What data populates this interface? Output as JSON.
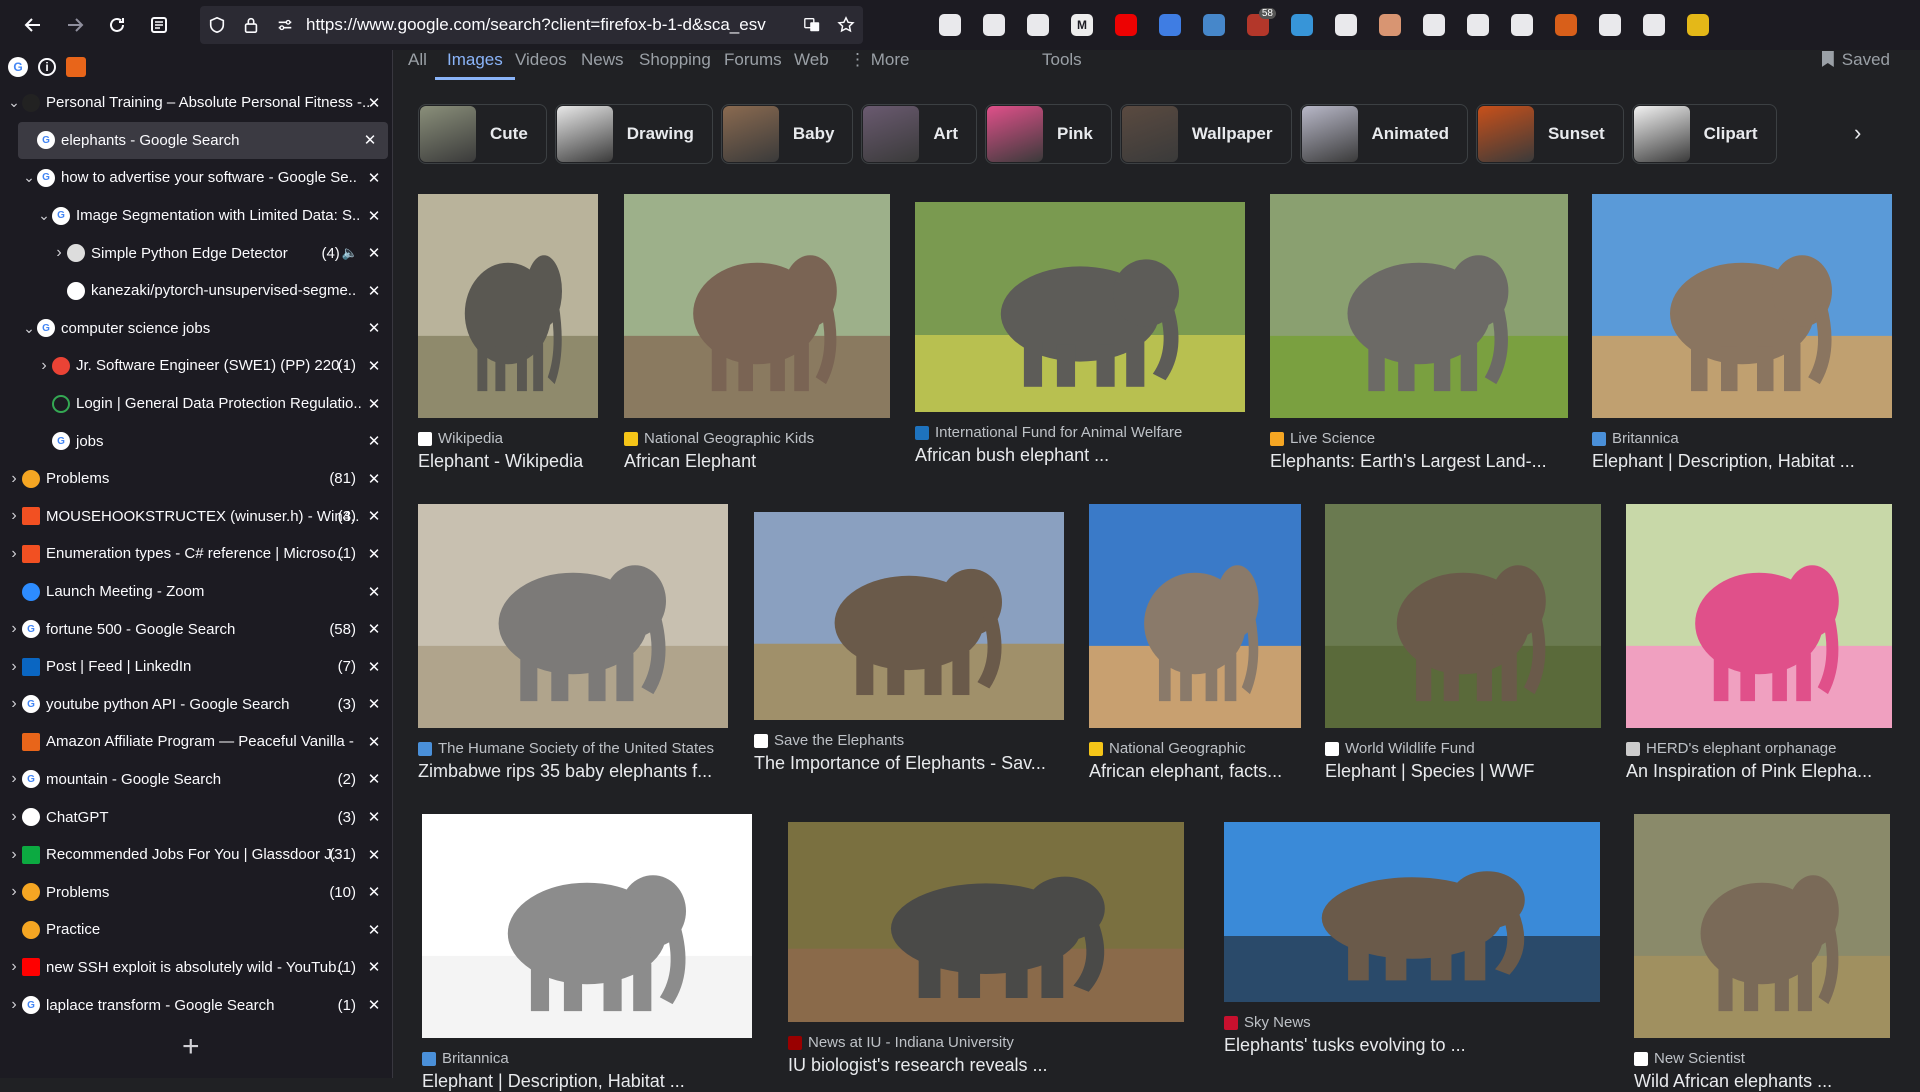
{
  "toolbar": {
    "url": "https://www.google.com/search?client=firefox-b-1-d&sca_esv",
    "extensions": [
      {
        "icon": "pocket-icon",
        "color": "#fbfbfe",
        "label": ""
      },
      {
        "icon": "screenshot-icon",
        "color": "#fbfbfe",
        "label": ""
      },
      {
        "icon": "download-icon",
        "color": "#fbfbfe",
        "label": ""
      },
      {
        "icon": "m-extension-icon",
        "color": "#ffffff",
        "label": "M"
      },
      {
        "icon": "youtube-extension-icon",
        "color": "#ff0000",
        "label": ""
      },
      {
        "icon": "translate-extension-icon",
        "color": "#4285f4",
        "label": ""
      },
      {
        "icon": "search-extension-icon",
        "color": "#4a90d9",
        "label": ""
      },
      {
        "icon": "ublock-icon",
        "color": "#c0392b",
        "label": "",
        "badge": "58"
      },
      {
        "icon": "compass-extension-icon",
        "color": "#3aa0e8",
        "label": ""
      },
      {
        "icon": "k-extension-icon",
        "color": "#fbfbfe",
        "label": ""
      },
      {
        "icon": "eyes-extension-icon",
        "color": "#e8a07a",
        "label": ""
      },
      {
        "icon": "puzzle-icon",
        "color": "#fbfbfe",
        "label": ""
      },
      {
        "icon": "music-icon",
        "color": "#fbfbfe",
        "label": ""
      },
      {
        "icon": "glasses-extension-icon",
        "color": "#fbfbfe",
        "label": ""
      },
      {
        "icon": "orange-extension-icon",
        "color": "#e8651a",
        "label": ""
      },
      {
        "icon": "stripes-extension-icon",
        "color": "#fbfbfe",
        "label": ""
      },
      {
        "icon": "gear-extension-icon",
        "color": "#fbfbfe",
        "label": ""
      },
      {
        "icon": "menu-extension-icon",
        "color": "#f5c518",
        "label": ""
      }
    ]
  },
  "sidebar": {
    "tabs": [
      {
        "indent": 0,
        "chev": "v",
        "fav": "fitness-favicon",
        "favColor": "#222",
        "title": "Personal Training – Absolute Personal Fitness -..",
        "count": "",
        "active": false
      },
      {
        "indent": 1,
        "chev": "",
        "fav": "google-favicon",
        "favColor": "#fff",
        "title": "elephants - Google Search",
        "count": "",
        "active": true
      },
      {
        "indent": 1,
        "chev": "v",
        "fav": "google-favicon",
        "favColor": "#fff",
        "title": "how to advertise your software - Google Se..",
        "count": "",
        "active": false
      },
      {
        "indent": 2,
        "chev": "v",
        "fav": "google-favicon",
        "favColor": "#fff",
        "title": "Image Segmentation with Limited Data: S..",
        "count": "",
        "active": false
      },
      {
        "indent": 3,
        "chev": ">",
        "fav": "edge-detector-favicon",
        "favColor": "#ddd",
        "title": "Simple Python Edge Detector",
        "count": "(4)",
        "active": false,
        "audio": true
      },
      {
        "indent": 3,
        "chev": "",
        "fav": "github-favicon",
        "favColor": "#fff",
        "title": "kanezaki/pytorch-unsupervised-segme..",
        "count": "",
        "active": false
      },
      {
        "indent": 1,
        "chev": "v",
        "fav": "google-favicon",
        "favColor": "#fff",
        "title": "computer science jobs",
        "count": "",
        "active": false
      },
      {
        "indent": 2,
        "chev": ">",
        "fav": "gmail-favicon",
        "favColor": "#ea4335",
        "title": "Jr. Software Engineer (SWE1) (PP) 220 -",
        "count": "(1)",
        "active": false
      },
      {
        "indent": 2,
        "chev": "",
        "fav": "circle-favicon",
        "favColor": "#34a853",
        "title": "Login | General Data Protection Regulatio..",
        "count": "",
        "active": false
      },
      {
        "indent": 2,
        "chev": "",
        "fav": "google-favicon",
        "favColor": "#fff",
        "title": "jobs",
        "count": "",
        "active": false
      },
      {
        "indent": 0,
        "chev": ">",
        "fav": "leetcode-favicon",
        "favColor": "#f5a623",
        "title": "Problems",
        "count": "(81)",
        "active": false
      },
      {
        "indent": 0,
        "chev": ">",
        "fav": "microsoft-favicon",
        "favColor": "#f25022",
        "title": "MOUSEHOOKSTRUCTEX (winuser.h) - Win3..",
        "count": "(4)",
        "active": false
      },
      {
        "indent": 0,
        "chev": ">",
        "fav": "microsoft-favicon",
        "favColor": "#f25022",
        "title": "Enumeration types - C# reference | Microso..",
        "count": "(1)",
        "active": false
      },
      {
        "indent": 0,
        "chev": "",
        "fav": "zoom-favicon",
        "favColor": "#2d8cff",
        "title": "Launch Meeting - Zoom",
        "count": "",
        "active": false
      },
      {
        "indent": 0,
        "chev": ">",
        "fav": "google-favicon",
        "favColor": "#fff",
        "title": "fortune 500 - Google Search",
        "count": "(58)",
        "active": false
      },
      {
        "indent": 0,
        "chev": ">",
        "fav": "linkedin-favicon",
        "favColor": "#0a66c2",
        "title": "Post | Feed | LinkedIn",
        "count": "(7)",
        "active": false
      },
      {
        "indent": 0,
        "chev": ">",
        "fav": "google-favicon",
        "favColor": "#fff",
        "title": "youtube python API - Google Search",
        "count": "(3)",
        "active": false
      },
      {
        "indent": 0,
        "chev": "",
        "fav": "amazon-favicon",
        "favColor": "#e8651a",
        "title": "Amazon Affiliate Program — Peaceful Vanilla -",
        "count": "",
        "active": false
      },
      {
        "indent": 0,
        "chev": ">",
        "fav": "google-favicon",
        "favColor": "#fff",
        "title": "mountain - Google Search",
        "count": "(2)",
        "active": false
      },
      {
        "indent": 0,
        "chev": ">",
        "fav": "chatgpt-favicon",
        "favColor": "#fff",
        "title": "ChatGPT",
        "count": "(3)",
        "active": false
      },
      {
        "indent": 0,
        "chev": ">",
        "fav": "glassdoor-favicon",
        "favColor": "#0caa41",
        "title": "Recommended Jobs For You | Glassdoor J..",
        "count": "(31)",
        "active": false
      },
      {
        "indent": 0,
        "chev": ">",
        "fav": "leetcode-favicon",
        "favColor": "#f5a623",
        "title": "Problems",
        "count": "(10)",
        "active": false
      },
      {
        "indent": 0,
        "chev": "",
        "fav": "leetcode-favicon",
        "favColor": "#f5a623",
        "title": "Practice",
        "count": "",
        "active": false
      },
      {
        "indent": 0,
        "chev": ">",
        "fav": "youtube-favicon",
        "favColor": "#ff0000",
        "title": "new SSH exploit is absolutely wild - YouTub..",
        "count": "(1)",
        "active": false
      },
      {
        "indent": 0,
        "chev": ">",
        "fav": "google-favicon",
        "favColor": "#fff",
        "title": "laplace transform - Google Search",
        "count": "(1)",
        "active": false
      }
    ]
  },
  "nav": {
    "tabs": [
      "All",
      "Images",
      "Videos",
      "News",
      "Shopping",
      "Forums",
      "Web",
      "⋮ More",
      "Tools"
    ],
    "active": "Images",
    "saved": "Saved"
  },
  "chips": [
    {
      "label": "Cute",
      "color": "#8a8f7a"
    },
    {
      "label": "Drawing",
      "color": "#e8e8e8"
    },
    {
      "label": "Baby",
      "color": "#8a6a50"
    },
    {
      "label": "Art",
      "color": "#6a5a70"
    },
    {
      "label": "Pink",
      "color": "#e0508a"
    },
    {
      "label": "Wallpaper",
      "color": "#5a4a40"
    },
    {
      "label": "Animated",
      "color": "#b8b8c8"
    },
    {
      "label": "Sunset",
      "color": "#c8501a"
    },
    {
      "label": "Clipart",
      "color": "#f2f2f2"
    }
  ],
  "results": [
    {
      "source": "Wikipedia",
      "caption": "Elephant - Wikipedia",
      "srcColor": "#ffffff",
      "bg": "#b9b39b",
      "fg": "#5a5852",
      "ground": "#8f8a6c"
    },
    {
      "source": "National Geographic Kids",
      "caption": "African Elephant",
      "srcColor": "#f5c518",
      "bg": "#9db08a",
      "fg": "#7a6454",
      "ground": "#8a7a60"
    },
    {
      "source": "International Fund for Animal Welfare",
      "caption": "African bush elephant ...",
      "srcColor": "#1e73be",
      "bg": "#7a9a50",
      "fg": "#5d5c58",
      "ground": "#b8c050"
    },
    {
      "source": "Live Science",
      "caption": "Elephants: Earth's Largest Land-...",
      "srcColor": "#f5a623",
      "bg": "#8aa070",
      "fg": "#6c6a66",
      "ground": "#7aa040"
    },
    {
      "source": "Britannica",
      "caption": "Elephant | Description, Habitat ...",
      "srcColor": "#4a90d9",
      "bg": "#5a9ad8",
      "fg": "#8a7560",
      "ground": "#c0a070"
    },
    {
      "source": "The Humane Society of the United States",
      "caption": "Zimbabwe rips 35 baby elephants f...",
      "srcColor": "#4a90d9",
      "bg": "#c8c0b0",
      "fg": "#7c7a78",
      "ground": "#b0a48c"
    },
    {
      "source": "Save the Elephants",
      "caption": "The Importance of Elephants - Sav...",
      "srcColor": "#ffffff",
      "bg": "#8aa0c0",
      "fg": "#6a5a4a",
      "ground": "#a0906a"
    },
    {
      "source": "National Geographic",
      "caption": "African elephant, facts...",
      "srcColor": "#f5c518",
      "bg": "#3a7ac8",
      "fg": "#8a7a6a",
      "ground": "#c8a070"
    },
    {
      "source": "World Wildlife Fund",
      "caption": "Elephant | Species | WWF",
      "srcColor": "#ffffff",
      "bg": "#6a7a50",
      "fg": "#6a5a4a",
      "ground": "#5a6a3a"
    },
    {
      "source": "HERD's elephant orphanage",
      "caption": "An Inspiration of Pink Elepha...",
      "srcColor": "#cccccc",
      "bg": "#c8d8a8",
      "fg": "#e0508a",
      "ground": "#f0a0c0"
    },
    {
      "source": "Britannica",
      "caption": "Elephant | Description, Habitat ...",
      "srcColor": "#4a90d9",
      "bg": "#ffffff",
      "fg": "#8c8c8c",
      "ground": "#f4f4f4"
    },
    {
      "source": "News at IU - Indiana University",
      "caption": "IU biologist's research reveals ...",
      "srcColor": "#990000",
      "bg": "#7a7040",
      "fg": "#4a4a48",
      "ground": "#8a6a4a"
    },
    {
      "source": "Sky News",
      "caption": "Elephants' tusks evolving to ...",
      "srcColor": "#c8102e",
      "bg": "#3a8ad8",
      "fg": "#6a5a4a",
      "ground": "#2a4a6a"
    },
    {
      "source": "New Scientist",
      "caption": "Wild African elephants ...",
      "srcColor": "#ffffff",
      "bg": "#8a8a6a",
      "fg": "#7a6a58",
      "ground": "#a09060"
    }
  ]
}
